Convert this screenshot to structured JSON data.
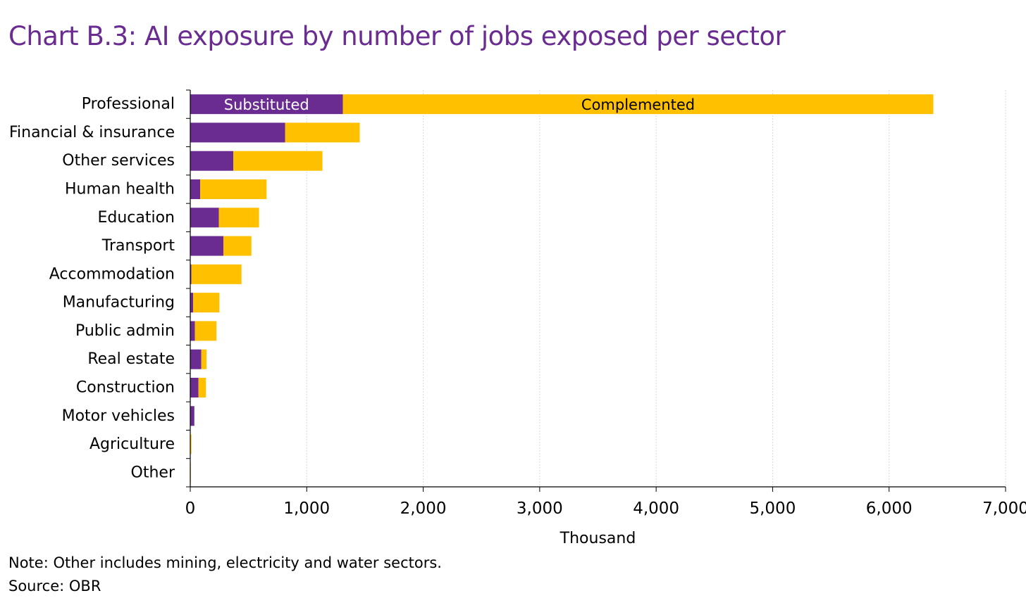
{
  "title": "Chart B.3: AI exposure by number of jobs exposed per sector",
  "note": "Note: Other includes mining, electricity and water sectors.",
  "source": "Source: OBR",
  "colors": {
    "substituted": "#6a2c91",
    "complemented": "#ffc000",
    "title": "#6a2c91",
    "grid": "#d9d9d9",
    "axis": "#000000"
  },
  "chart_data": {
    "type": "bar",
    "orientation": "horizontal",
    "stacked": true,
    "title": "Chart B.3: AI exposure by number of jobs exposed per sector",
    "xlabel": "Thousand",
    "ylabel": "",
    "xlim": [
      0,
      7000
    ],
    "xticks": [
      0,
      1000,
      2000,
      3000,
      4000,
      5000,
      6000,
      7000
    ],
    "xtick_labels": [
      "0",
      "1,000",
      "2,000",
      "3,000",
      "4,000",
      "5,000",
      "6,000",
      "7,000"
    ],
    "grid": "vertical",
    "legend": "inline labels on first bar",
    "categories": [
      "Professional",
      "Financial & insurance",
      "Other services",
      "Human health",
      "Education",
      "Transport",
      "Accommodation",
      "Manufacturing",
      "Public admin",
      "Real estate",
      "Construction",
      "Motor vehicles",
      "Agriculture",
      "Other"
    ],
    "series": [
      {
        "name": "Substituted",
        "values": [
          1310,
          815,
          370,
          85,
          245,
          285,
          10,
          25,
          40,
          95,
          70,
          35,
          3,
          2
        ]
      },
      {
        "name": "Complemented",
        "values": [
          5070,
          640,
          765,
          570,
          345,
          240,
          430,
          225,
          185,
          45,
          65,
          0,
          7,
          3
        ]
      }
    ]
  }
}
